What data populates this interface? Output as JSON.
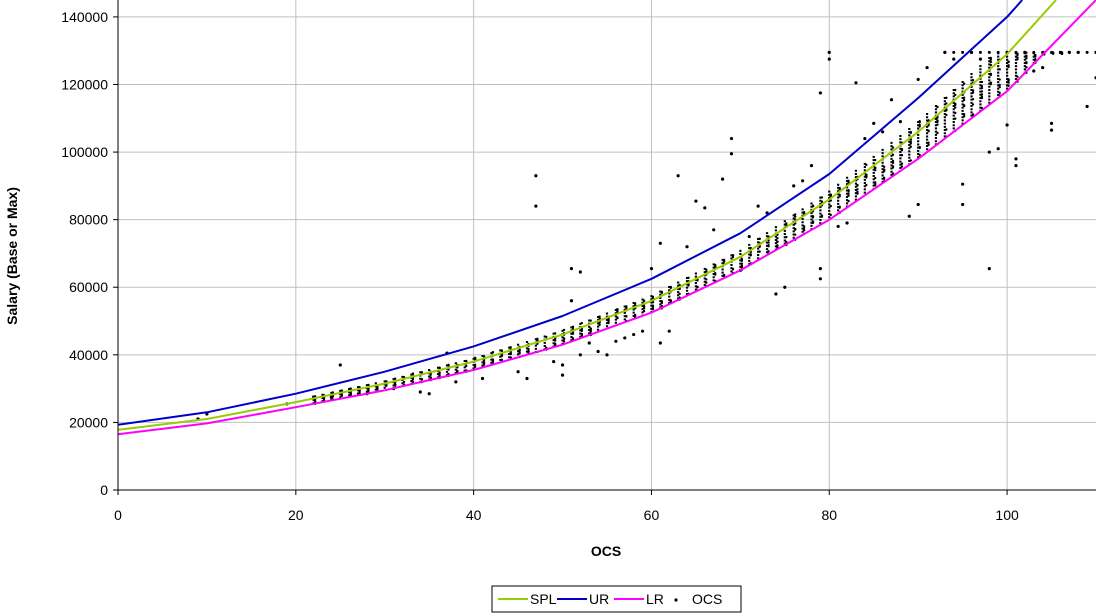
{
  "chart_data": {
    "type": "scatter",
    "title": "",
    "xlabel": "OCS",
    "ylabel": "Salary (Base or Max)",
    "xlim": [
      0,
      110
    ],
    "ylim": [
      0,
      145000
    ],
    "x_ticks": [
      0,
      20,
      40,
      60,
      80,
      100
    ],
    "y_ticks": [
      0,
      20000,
      40000,
      60000,
      80000,
      100000,
      120000,
      140000
    ],
    "grid": true,
    "legend_position": "bottom-center",
    "series": [
      {
        "name": "SPL",
        "kind": "line",
        "color": "#99cc00",
        "x": [
          0,
          10,
          20,
          30,
          40,
          50,
          60,
          70,
          80,
          90,
          100,
          105.5
        ],
        "y": [
          17800,
          21000,
          26000,
          31500,
          38000,
          46000,
          56000,
          69000,
          86000,
          106000,
          129000,
          145000
        ]
      },
      {
        "name": "UR",
        "kind": "line",
        "color": "#0000cc",
        "x": [
          0,
          10,
          20,
          30,
          40,
          50,
          60,
          70,
          80,
          90,
          100,
          101.7
        ],
        "y": [
          19300,
          23000,
          28500,
          35000,
          42500,
          51500,
          62500,
          76000,
          93500,
          116000,
          140000,
          145000
        ]
      },
      {
        "name": "LR",
        "kind": "line",
        "color": "#ff00ff",
        "x": [
          0,
          10,
          20,
          30,
          40,
          50,
          60,
          70,
          80,
          90,
          100,
          110
        ],
        "y": [
          16500,
          19700,
          24500,
          29500,
          35500,
          43000,
          52500,
          65000,
          80000,
          98000,
          118000,
          145000
        ]
      },
      {
        "name": "OCS",
        "kind": "points",
        "color": "#000000",
        "points": [
          [
            9,
            21000
          ],
          [
            10,
            22500
          ],
          [
            19,
            25500
          ],
          [
            22,
            27500
          ],
          [
            24,
            27500
          ],
          [
            25,
            37000
          ],
          [
            28,
            28500
          ],
          [
            31,
            30000
          ],
          [
            34,
            29000
          ],
          [
            35,
            28500
          ],
          [
            37,
            40500
          ],
          [
            38,
            32000
          ],
          [
            41,
            33000
          ],
          [
            45,
            35000
          ],
          [
            46,
            33000
          ],
          [
            47,
            93000
          ],
          [
            47,
            84000
          ],
          [
            49,
            38000
          ],
          [
            50,
            37000
          ],
          [
            50,
            34000
          ],
          [
            51,
            56000
          ],
          [
            51,
            65500
          ],
          [
            52,
            64500
          ],
          [
            52,
            40000
          ],
          [
            53,
            43500
          ],
          [
            54,
            41000
          ],
          [
            55,
            40000
          ],
          [
            56,
            44000
          ],
          [
            57,
            45000
          ],
          [
            58,
            46000
          ],
          [
            59,
            47000
          ],
          [
            60,
            65500
          ],
          [
            61,
            73000
          ],
          [
            61,
            43500
          ],
          [
            62,
            47000
          ],
          [
            63,
            93000
          ],
          [
            64,
            72000
          ],
          [
            65,
            85500
          ],
          [
            66,
            83500
          ],
          [
            67,
            77000
          ],
          [
            68,
            92000
          ],
          [
            69,
            104000
          ],
          [
            69,
            99500
          ],
          [
            70,
            65000
          ],
          [
            71,
            75000
          ],
          [
            72,
            84000
          ],
          [
            73,
            82000
          ],
          [
            74,
            58000
          ],
          [
            75,
            60000
          ],
          [
            76,
            90000
          ],
          [
            77,
            91500
          ],
          [
            78,
            96000
          ],
          [
            79,
            117500
          ],
          [
            79,
            65500
          ],
          [
            79,
            62500
          ],
          [
            80,
            129500
          ],
          [
            80,
            127500
          ],
          [
            81,
            78000
          ],
          [
            82,
            79000
          ],
          [
            83,
            120500
          ],
          [
            84,
            104000
          ],
          [
            85,
            108500
          ],
          [
            86,
            106000
          ],
          [
            87,
            115500
          ],
          [
            88,
            109000
          ],
          [
            89,
            81000
          ],
          [
            90,
            121500
          ],
          [
            90,
            84500
          ],
          [
            91,
            125000
          ],
          [
            92,
            110000
          ],
          [
            93,
            129500
          ],
          [
            94,
            127500
          ],
          [
            95,
            90500
          ],
          [
            95,
            84500
          ],
          [
            96,
            129500
          ],
          [
            97,
            127500
          ],
          [
            98,
            65500
          ],
          [
            98,
            100000
          ],
          [
            99,
            101000
          ],
          [
            100,
            129500
          ],
          [
            100,
            108000
          ],
          [
            101,
            98000
          ],
          [
            101,
            96000
          ],
          [
            102,
            129500
          ],
          [
            103,
            124000
          ],
          [
            104,
            125000
          ],
          [
            105,
            108500
          ],
          [
            105,
            106500
          ],
          [
            106,
            129500
          ],
          [
            107,
            129500
          ],
          [
            108,
            129500
          ],
          [
            109,
            113500
          ],
          [
            110,
            122000
          ],
          [
            110,
            129500
          ]
        ]
      }
    ]
  }
}
